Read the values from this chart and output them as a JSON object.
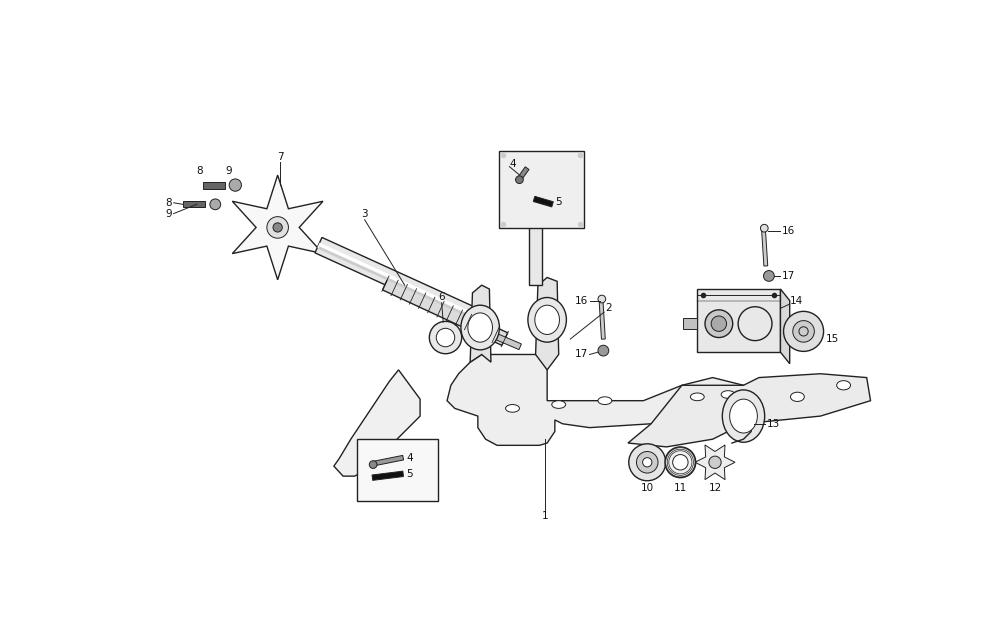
{
  "background_color": "#ffffff",
  "line_color": "#222222",
  "label_color": "#111111",
  "fig_width": 10.0,
  "fig_height": 6.44,
  "dpi": 100,
  "lw_main": 1.0,
  "lw_thin": 0.7,
  "fs": 7.5
}
